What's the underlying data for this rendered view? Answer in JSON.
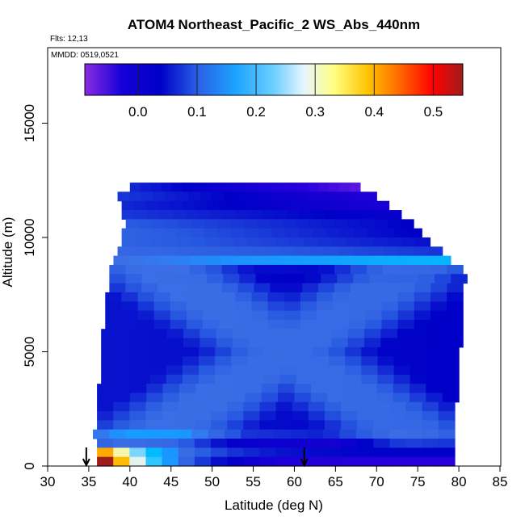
{
  "chart_data": {
    "type": "heatmap",
    "title": "ATOM4 Northeast_Pacific_2 WS_Abs_440nm",
    "annotations": {
      "flights": "Flts: 12,13",
      "dates": "MMDD: 0519,0521"
    },
    "xlabel": "Latitude (deg N)",
    "ylabel": "Altitude (m)",
    "xlim": [
      30,
      85
    ],
    "ylim": [
      0,
      17500
    ],
    "x_ticks": [
      "30",
      "35",
      "40",
      "45",
      "50",
      "55",
      "60",
      "65",
      "70",
      "75",
      "80",
      "85"
    ],
    "y_ticks": [
      "0",
      "5000",
      "10000",
      "15000"
    ],
    "colorbar": {
      "range": [
        -0.09,
        0.55
      ],
      "tick_labels": [
        "0.0",
        "0.1",
        "0.2",
        "0.3",
        "0.4",
        "0.5"
      ],
      "tick_values": [
        0.0,
        0.1,
        0.2,
        0.3,
        0.4,
        0.5
      ],
      "colors": [
        "#8a2be2",
        "#0000c8",
        "#1e90ff",
        "#00bfff",
        "#eaf6ff",
        "#ffff66",
        "#ffb300",
        "#ff0000",
        "#a01c1c"
      ]
    },
    "markers": {
      "arrow_latitudes": [
        34.7,
        61.2
      ]
    },
    "altitude_bands": [
      {
        "y0": 12000,
        "y1": 12400,
        "x0": 40.0,
        "x1": 68.0,
        "v0": 0.02,
        "v1": -0.07
      },
      {
        "y0": 11600,
        "y1": 12000,
        "x0": 38.5,
        "x1": 70.0,
        "v0": 0.03,
        "v1": -0.04
      },
      {
        "y0": 11200,
        "y1": 11600,
        "x0": 39.0,
        "x1": 71.5,
        "v0": 0.02,
        "v1": -0.03
      },
      {
        "y0": 10800,
        "y1": 11200,
        "x0": 39.0,
        "x1": 73.0,
        "v0": 0.03,
        "v1": -0.01
      },
      {
        "y0": 10400,
        "y1": 10800,
        "x0": 39.5,
        "x1": 74.5,
        "v0": 0.05,
        "v1": 0.0
      },
      {
        "y0": 10000,
        "y1": 10400,
        "x0": 39.0,
        "x1": 75.5,
        "v0": 0.06,
        "v1": 0.0
      },
      {
        "y0": 9600,
        "y1": 10000,
        "x0": 39.0,
        "x1": 76.5,
        "v0": 0.06,
        "v1": 0.01
      },
      {
        "y0": 9200,
        "y1": 9600,
        "x0": 38.5,
        "x1": 78.0,
        "v0": 0.07,
        "v1": 0.03
      },
      {
        "y0": 8800,
        "y1": 9200,
        "x0": 38.0,
        "x1": 79.0,
        "v0": 0.08,
        "v1": 0.14
      },
      {
        "y0": 8400,
        "y1": 8800,
        "x0": 37.5,
        "x1": 80.5,
        "v0": 0.08,
        "v1": 0.07
      },
      {
        "y0": 8000,
        "y1": 8400,
        "x0": 37.5,
        "x1": 81.0,
        "v0": 0.08,
        "v1": 0.06
      },
      {
        "y0": 7600,
        "y1": 8000,
        "x0": 37.5,
        "x1": 80.5,
        "v0": 0.08,
        "v1": 0.07
      },
      {
        "y0": 7200,
        "y1": 7600,
        "x0": 37.0,
        "x1": 80.5,
        "v0": 0.08,
        "v1": 0.07
      },
      {
        "y0": 6800,
        "y1": 7200,
        "x0": 37.0,
        "x1": 80.5,
        "v0": 0.08,
        "v1": 0.07
      },
      {
        "y0": 6400,
        "y1": 6800,
        "x0": 37.0,
        "x1": 80.5,
        "v0": 0.08,
        "v1": 0.07
      },
      {
        "y0": 6000,
        "y1": 6400,
        "x0": 37.0,
        "x1": 80.5,
        "v0": 0.08,
        "v1": 0.07
      },
      {
        "y0": 5600,
        "y1": 6000,
        "x0": 36.5,
        "x1": 80.5,
        "v0": 0.08,
        "v1": 0.07
      },
      {
        "y0": 5200,
        "y1": 5600,
        "x0": 36.5,
        "x1": 80.5,
        "v0": 0.08,
        "v1": 0.07
      },
      {
        "y0": 4800,
        "y1": 5200,
        "x0": 36.5,
        "x1": 80.0,
        "v0": 0.08,
        "v1": 0.07
      },
      {
        "y0": 4400,
        "y1": 4800,
        "x0": 36.5,
        "x1": 80.0,
        "v0": 0.08,
        "v1": 0.07
      },
      {
        "y0": 4000,
        "y1": 4400,
        "x0": 36.5,
        "x1": 80.0,
        "v0": 0.08,
        "v1": 0.07
      },
      {
        "y0": 3600,
        "y1": 4000,
        "x0": 36.5,
        "x1": 80.0,
        "v0": 0.08,
        "v1": 0.07
      },
      {
        "y0": 3200,
        "y1": 3600,
        "x0": 36.0,
        "x1": 80.0,
        "v0": 0.08,
        "v1": 0.07
      },
      {
        "y0": 2800,
        "y1": 3200,
        "x0": 36.0,
        "x1": 80.0,
        "v0": 0.08,
        "v1": 0.07
      },
      {
        "y0": 2400,
        "y1": 2800,
        "x0": 36.0,
        "x1": 79.5,
        "v0": 0.08,
        "v1": 0.07
      },
      {
        "y0": 2000,
        "y1": 2400,
        "x0": 36.0,
        "x1": 79.5,
        "v0": 0.08,
        "v1": 0.07
      },
      {
        "y0": 1600,
        "y1": 2000,
        "x0": 36.0,
        "x1": 79.5,
        "v0": 0.08,
        "v1": 0.07
      },
      {
        "y0": 1200,
        "y1": 1600,
        "x0": 35.5,
        "x1": 79.5,
        "v0": 0.12,
        "v1": 0.07
      },
      {
        "y0": 800,
        "y1": 1200,
        "x0": 36.0,
        "x1": 79.5,
        "v0": 0.08,
        "v1": 0.03
      },
      {
        "y0": 400,
        "y1": 800,
        "x0": 36.0,
        "x1": 79.5,
        "v0": 0.4,
        "v1": 0.0
      },
      {
        "y0": 0,
        "y1": 400,
        "x0": 36.0,
        "x1": 79.5,
        "v0": 0.55,
        "v1": -0.05
      }
    ]
  }
}
